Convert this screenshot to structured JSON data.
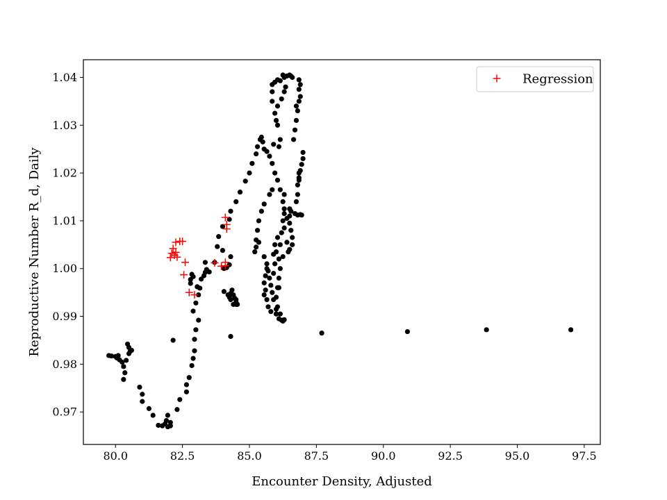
{
  "chart_data": {
    "type": "scatter",
    "title": "",
    "xlabel": "Encounter Density, Adjusted",
    "ylabel": "Reproductive Number R_d, Daily",
    "xlim": [
      78.8,
      98.1
    ],
    "ylim": [
      0.9632,
      1.0437
    ],
    "xticks": [
      80.0,
      82.5,
      85.0,
      87.5,
      90.0,
      92.5,
      95.0,
      97.5
    ],
    "yticks": [
      0.97,
      0.98,
      0.99,
      1.0,
      1.01,
      1.02,
      1.03,
      1.04
    ],
    "grid": false,
    "legend": {
      "position": "upper-right",
      "entries": [
        "Regression"
      ]
    },
    "series": [
      {
        "marker": "dot",
        "color": "#000000",
        "points": [
          [
            79.75,
            0.9818
          ],
          [
            79.85,
            0.9817
          ],
          [
            80.0,
            0.9816
          ],
          [
            80.05,
            0.9813
          ],
          [
            80.1,
            0.9818
          ],
          [
            80.15,
            0.9809
          ],
          [
            80.25,
            0.9804
          ],
          [
            80.3,
            0.9795
          ],
          [
            80.35,
            0.9782
          ],
          [
            80.3,
            0.9768
          ],
          [
            80.4,
            0.9808
          ],
          [
            80.45,
            0.9842
          ],
          [
            80.5,
            0.9835
          ],
          [
            80.5,
            0.9822
          ],
          [
            80.55,
            0.9827
          ],
          [
            80.6,
            0.9829
          ],
          [
            80.9,
            0.9752
          ],
          [
            81.0,
            0.9737
          ],
          [
            81.0,
            0.9722
          ],
          [
            81.25,
            0.9707
          ],
          [
            81.4,
            0.9693
          ],
          [
            81.6,
            0.9672
          ],
          [
            81.75,
            0.9671
          ],
          [
            81.85,
            0.9675
          ],
          [
            81.9,
            0.9682
          ],
          [
            81.95,
            0.9693
          ],
          [
            81.95,
            0.9669
          ],
          [
            82.05,
            0.9678
          ],
          [
            82.05,
            0.9671
          ],
          [
            82.3,
            0.9705
          ],
          [
            82.4,
            0.9726
          ],
          [
            82.65,
            0.9742
          ],
          [
            82.65,
            0.9757
          ],
          [
            82.75,
            0.9772
          ],
          [
            82.85,
            0.9797
          ],
          [
            82.9,
            0.9812
          ],
          [
            82.95,
            0.9828
          ],
          [
            82.95,
            0.9852
          ],
          [
            83.0,
            0.9872
          ],
          [
            83.1,
            0.9892
          ],
          [
            82.9,
            0.9911
          ],
          [
            83.0,
            0.9928
          ],
          [
            83.1,
            0.9945
          ],
          [
            82.8,
            0.9969
          ],
          [
            82.8,
            0.9977
          ],
          [
            82.85,
            0.9988
          ],
          [
            82.9,
            0.9983
          ],
          [
            83.05,
            0.9962
          ],
          [
            83.15,
            0.9959
          ],
          [
            83.2,
            0.9978
          ],
          [
            83.3,
            0.9985
          ],
          [
            83.35,
            0.9992
          ],
          [
            83.4,
            0.9998
          ],
          [
            83.5,
            0.9993
          ],
          [
            83.35,
            1.0013
          ],
          [
            83.7,
            1.0013
          ],
          [
            83.8,
            1.0046
          ],
          [
            83.85,
            1.0067
          ],
          [
            84.0,
            1.0088
          ],
          [
            84.25,
            1.0103
          ],
          [
            84.3,
            1.012
          ],
          [
            84.5,
            1.014
          ],
          [
            84.65,
            1.016
          ],
          [
            84.85,
            1.0183
          ],
          [
            85.0,
            1.02
          ],
          [
            85.1,
            1.022
          ],
          [
            85.25,
            1.024
          ],
          [
            85.3,
            1.0255
          ],
          [
            85.4,
            1.027
          ],
          [
            85.45,
            1.0275
          ],
          [
            85.5,
            1.0265
          ],
          [
            85.55,
            1.025
          ],
          [
            85.65,
            1.0245
          ],
          [
            85.75,
            1.0235
          ],
          [
            85.85,
            1.022
          ],
          [
            85.95,
            1.02
          ],
          [
            86.05,
            1.0185
          ],
          [
            85.85,
            1.0165
          ],
          [
            85.75,
            1.0155
          ],
          [
            85.55,
            1.0135
          ],
          [
            85.45,
            1.012
          ],
          [
            85.35,
            1.01
          ],
          [
            85.3,
            1.008
          ],
          [
            85.25,
            1.006
          ],
          [
            85.2,
            1.0035
          ],
          [
            85.25,
            1.0045
          ],
          [
            85.35,
            1.0055
          ],
          [
            85.55,
            1.0025
          ],
          [
            85.65,
            1.001
          ],
          [
            85.7,
            0.9995
          ],
          [
            85.75,
            0.998
          ],
          [
            85.8,
            0.9965
          ],
          [
            85.85,
            0.995
          ],
          [
            85.9,
            0.9935
          ],
          [
            86.0,
            0.9915
          ],
          [
            86.0,
            0.9905
          ],
          [
            86.1,
            0.9895
          ],
          [
            86.2,
            0.9892
          ],
          [
            86.25,
            0.989
          ],
          [
            86.15,
            0.9905
          ],
          [
            86.05,
            0.992
          ],
          [
            86.0,
            0.994
          ],
          [
            86.05,
            0.996
          ],
          [
            86.1,
            0.998
          ],
          [
            86.15,
            1.0
          ],
          [
            86.1,
            1.002
          ],
          [
            86.0,
            1.0035
          ],
          [
            85.95,
            1.005
          ],
          [
            86.05,
            1.0065
          ],
          [
            86.2,
            1.0075
          ],
          [
            86.3,
            1.0085
          ],
          [
            86.25,
            1.01
          ],
          [
            86.3,
            1.0115
          ],
          [
            86.25,
            1.014
          ],
          [
            86.15,
            1.0165
          ],
          [
            86.3,
            1.0125
          ],
          [
            86.4,
            1.0105
          ],
          [
            86.5,
            1.0095
          ],
          [
            86.55,
            1.008
          ],
          [
            86.6,
            1.0065
          ],
          [
            86.6,
            1.005
          ],
          [
            86.5,
            1.004
          ],
          [
            86.45,
            1.0035
          ],
          [
            86.4,
            1.0055
          ],
          [
            86.5,
            1.011
          ],
          [
            86.55,
            1.012
          ],
          [
            86.7,
            1.0115
          ],
          [
            86.8,
            1.0112
          ],
          [
            86.9,
            1.0113
          ],
          [
            86.95,
            1.0112
          ],
          [
            86.8,
            1.0175
          ],
          [
            86.85,
            1.019
          ],
          [
            86.9,
            1.0205
          ],
          [
            86.95,
            1.0218
          ],
          [
            87.0,
            1.023
          ],
          [
            87.0,
            1.0243
          ],
          [
            86.85,
            1.02
          ],
          [
            86.85,
            1.0185
          ],
          [
            86.8,
            1.0155
          ],
          [
            86.75,
            1.014
          ],
          [
            86.65,
            1.027
          ],
          [
            86.7,
            1.029
          ],
          [
            86.75,
            1.031
          ],
          [
            86.8,
            1.033
          ],
          [
            86.75,
            1.034
          ],
          [
            86.85,
            1.035
          ],
          [
            86.9,
            1.036
          ],
          [
            86.85,
            1.0375
          ],
          [
            86.9,
            1.0385
          ],
          [
            86.85,
            1.0395
          ],
          [
            86.6,
            1.04
          ],
          [
            86.55,
            1.0403
          ],
          [
            86.5,
            1.0405
          ],
          [
            86.4,
            1.0403
          ],
          [
            86.3,
            1.04
          ],
          [
            86.25,
            1.0405
          ],
          [
            86.35,
            1.038
          ],
          [
            86.3,
            1.037
          ],
          [
            86.2,
            1.0355
          ],
          [
            86.05,
            1.034
          ],
          [
            85.95,
            1.0325
          ],
          [
            86.0,
            1.031
          ],
          [
            86.05,
            1.03
          ],
          [
            86.15,
            1.027
          ],
          [
            86.1,
            1.0255
          ],
          [
            85.9,
            1.026
          ],
          [
            85.85,
            1.035
          ],
          [
            85.85,
            1.037
          ],
          [
            85.85,
            1.0385
          ],
          [
            85.95,
            1.039
          ],
          [
            86.05,
            1.0395
          ],
          [
            86.15,
            1.0393
          ],
          [
            86.3,
            1.0155
          ],
          [
            86.5,
            1.0125
          ],
          [
            85.9,
            0.999
          ],
          [
            85.95,
            1.001
          ],
          [
            85.9,
            1.003
          ],
          [
            86.1,
            0.996
          ],
          [
            86.25,
            1.0025
          ],
          [
            86.15,
            1.005
          ],
          [
            86.0,
            0.9905
          ],
          [
            85.8,
            0.991
          ],
          [
            85.7,
            0.992
          ],
          [
            85.65,
            0.9935
          ],
          [
            85.55,
            0.9945
          ],
          [
            85.6,
            0.9955
          ],
          [
            85.55,
            0.997
          ],
          [
            85.6,
            0.9985
          ],
          [
            85.65,
            1.0
          ],
          [
            86.3,
            0.9893
          ],
          [
            84.05,
            0.9952
          ],
          [
            84.2,
            0.9945
          ],
          [
            84.25,
            0.994
          ],
          [
            84.3,
            0.9948
          ],
          [
            84.35,
            0.9955
          ],
          [
            84.4,
            0.9945
          ],
          [
            84.45,
            0.9938
          ],
          [
            84.5,
            0.993
          ],
          [
            84.5,
            0.9925
          ],
          [
            84.55,
            0.9925
          ],
          [
            84.5,
            0.9935
          ],
          [
            84.4,
            0.9925
          ],
          [
            84.3,
            0.9935
          ],
          [
            84.3,
            1.0025
          ],
          [
            84.25,
            1.0008
          ],
          [
            84.15,
            1.0002
          ],
          [
            84.05,
            1.0
          ],
          [
            84.0,
            1.0038
          ],
          [
            84.3,
            0.9858
          ],
          [
            82.15,
            0.985
          ],
          [
            87.7,
            0.9865
          ],
          [
            90.9,
            0.9868
          ],
          [
            93.85,
            0.9872
          ],
          [
            97.0,
            0.9872
          ]
        ]
      },
      {
        "name": "Regression",
        "marker": "plus",
        "color": "#ff0000",
        "points": [
          [
            82.05,
            1.0023
          ],
          [
            82.1,
            1.0032
          ],
          [
            82.15,
            1.0042
          ],
          [
            82.2,
            1.0028
          ],
          [
            82.25,
            1.0055
          ],
          [
            82.25,
            1.0034
          ],
          [
            82.3,
            1.0024
          ],
          [
            82.4,
            1.0057
          ],
          [
            82.5,
            1.0057
          ],
          [
            82.6,
            1.0013
          ],
          [
            82.55,
            0.9987
          ],
          [
            82.75,
            0.995
          ],
          [
            82.95,
            0.9945
          ],
          [
            83.7,
            1.0012
          ],
          [
            83.95,
            1.0005
          ],
          [
            84.1,
            1.0013
          ],
          [
            84.1,
            1.0006
          ],
          [
            84.1,
            1.0107
          ],
          [
            84.15,
            1.0092
          ],
          [
            84.15,
            1.0083
          ]
        ]
      }
    ]
  }
}
